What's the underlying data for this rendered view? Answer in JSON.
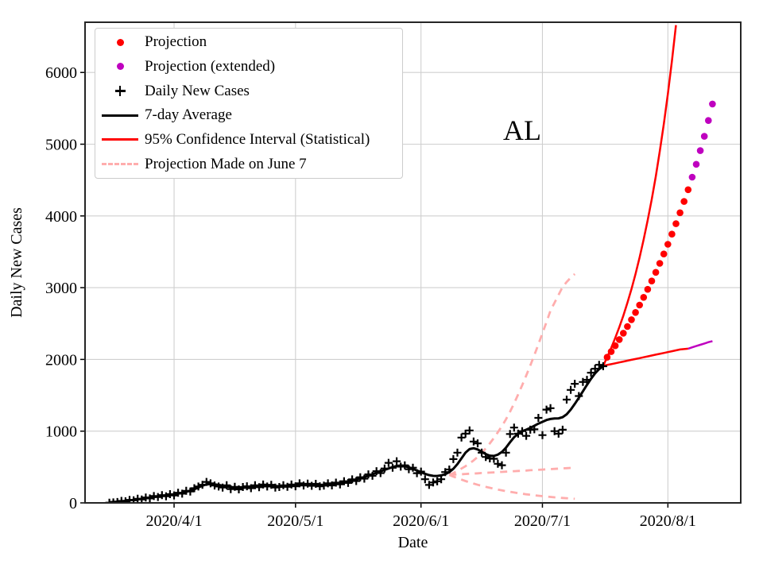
{
  "legend": {
    "items": [
      {
        "label": "Projection",
        "marker": "red-dot"
      },
      {
        "label": "Projection (extended)",
        "marker": "magenta-dot"
      },
      {
        "label": "Daily New Cases",
        "marker": "black-plus"
      },
      {
        "label": "7-day Average",
        "marker": "black-line"
      },
      {
        "label": "95% Confidence Interval (Statistical)",
        "marker": "red-line"
      },
      {
        "label": "Projection Made on June 7",
        "marker": "pink-dashed-line"
      }
    ]
  },
  "chart_data": {
    "type": "line",
    "title": "AL",
    "xlabel": "Date",
    "ylabel": "Daily New Cases",
    "xlim": [
      "2020-03-10",
      "2020-08-19"
    ],
    "ylim": [
      0,
      6700
    ],
    "grid": true,
    "legend_position": "upper left",
    "colors": {
      "red": "#ff0000",
      "magenta": "#bf00bf",
      "black": "#000000",
      "pink": "#ffadad",
      "grid": "#cfcfcf"
    },
    "annotation": {
      "text": "AL",
      "date": "2020-06-26",
      "value": 5150
    },
    "x_ticks": [
      {
        "label": "2020/4/1",
        "date": "2020-04-01"
      },
      {
        "label": "2020/5/1",
        "date": "2020-05-01"
      },
      {
        "label": "2020/6/1",
        "date": "2020-06-01"
      },
      {
        "label": "2020/7/1",
        "date": "2020-07-01"
      },
      {
        "label": "2020/8/1",
        "date": "2020-08-01"
      }
    ],
    "y_ticks": [
      {
        "label": "0",
        "value": 0
      },
      {
        "label": "1000",
        "value": 1000
      },
      {
        "label": "2000",
        "value": 2000
      },
      {
        "label": "3000",
        "value": 3000
      },
      {
        "label": "4000",
        "value": 4000
      },
      {
        "label": "5000",
        "value": 5000
      },
      {
        "label": "6000",
        "value": 6000
      }
    ],
    "series": [
      {
        "id": "june7-upper",
        "name": "Projection Made on June 7 (upper)",
        "style": "line",
        "color": "#ffadad",
        "width": 2.8,
        "dash": "9 7",
        "start": "2020-06-08",
        "values": [
          390,
          415,
          445,
          478,
          512,
          550,
          592,
          640,
          695,
          760,
          830,
          905,
          985,
          1070,
          1165,
          1270,
          1385,
          1510,
          1640,
          1775,
          1915,
          2060,
          2210,
          2365,
          2520,
          2680,
          2790,
          2900,
          3010,
          3080,
          3140,
          3190
        ]
      },
      {
        "id": "june7-mid",
        "name": "Projection Made on June 7 (central)",
        "style": "line",
        "color": "#ffadad",
        "width": 2.8,
        "dash": "9 7",
        "start": "2020-06-08",
        "values": [
          390,
          393,
          396,
          399,
          403,
          406,
          409,
          412,
          416,
          419,
          422,
          425,
          429,
          432,
          435,
          438,
          442,
          445,
          448,
          451,
          455,
          458,
          461,
          464,
          468,
          471,
          474,
          477,
          481,
          484,
          487,
          490
        ]
      },
      {
        "id": "june7-lower",
        "name": "Projection Made on June 7 (lower)",
        "style": "line",
        "color": "#ffadad",
        "width": 2.8,
        "dash": "9 7",
        "start": "2020-06-08",
        "values": [
          390,
          367,
          345,
          324,
          305,
          286,
          269,
          253,
          238,
          224,
          210,
          198,
          186,
          175,
          164,
          154,
          145,
          136,
          128,
          120,
          113,
          106,
          100,
          94,
          88,
          83,
          78,
          73,
          69,
          65,
          61,
          57
        ]
      },
      {
        "id": "ci-upper",
        "name": "95% Confidence Interval upper",
        "style": "line",
        "color": "#ff0000",
        "width": 2.5,
        "start": "2020-07-16",
        "values": [
          1910,
          2030,
          2160,
          2300,
          2450,
          2610,
          2790,
          2980,
          3190,
          3420,
          3670,
          3940,
          4230,
          4550,
          4900,
          5280,
          5700,
          6160,
          6660
        ]
      },
      {
        "id": "ci-lower",
        "name": "95% Confidence Interval lower",
        "style": "line",
        "color": "#ff0000",
        "width": 2.5,
        "start": "2020-07-16",
        "values": [
          1910,
          1922,
          1934,
          1946,
          1958,
          1970,
          1982,
          1994,
          2006,
          2018,
          2030,
          2042,
          2054,
          2066,
          2078,
          2090,
          2102,
          2114,
          2126,
          2138,
          2144,
          2150
        ]
      },
      {
        "id": "ci-lower-extended",
        "name": "95% Confidence Interval lower (extended)",
        "style": "line",
        "color": "#bf00bf",
        "width": 2.5,
        "start": "2020-08-06",
        "values": [
          2150,
          2168,
          2186,
          2204,
          2222,
          2240,
          2255
        ]
      },
      {
        "id": "projection",
        "name": "Projection",
        "style": "dot",
        "color": "#ff0000",
        "start": "2020-07-17",
        "values": [
          2030,
          2109,
          2191,
          2277,
          2366,
          2458,
          2554,
          2654,
          2757,
          2865,
          2977,
          3093,
          3214,
          3339,
          3470,
          3605,
          3746,
          3892,
          4044,
          4202,
          4366
        ]
      },
      {
        "id": "projection-extended",
        "name": "Projection (extended)",
        "style": "dot",
        "color": "#bf00bf",
        "start": "2020-08-07",
        "values": [
          4540,
          4720,
          4910,
          5110,
          5330,
          5560
        ]
      },
      {
        "id": "seven-day-average",
        "name": "7-day Average",
        "style": "line",
        "color": "#000000",
        "width": 3,
        "start": "2020-03-16",
        "values": [
          8,
          12,
          17,
          22,
          28,
          35,
          42,
          50,
          58,
          66,
          74,
          82,
          90,
          97,
          104,
          112,
          120,
          130,
          142,
          155,
          170,
          190,
          215,
          240,
          258,
          262,
          258,
          250,
          240,
          228,
          218,
          212,
          208,
          210,
          215,
          222,
          230,
          236,
          240,
          242,
          240,
          236,
          232,
          230,
          232,
          240,
          250,
          255,
          258,
          257,
          255,
          252,
          250,
          252,
          256,
          261,
          267,
          275,
          285,
          297,
          311,
          326,
          343,
          361,
          380,
          400,
          420,
          440,
          460,
          480,
          500,
          515,
          520,
          512,
          496,
          475,
          452,
          428,
          405,
          388,
          377,
          375,
          383,
          400,
          430,
          475,
          540,
          620,
          700,
          750,
          762,
          745,
          712,
          680,
          658,
          655,
          672,
          710,
          770,
          845,
          915,
          965,
          1000,
          1020,
          1045,
          1075,
          1105,
          1130,
          1155,
          1170,
          1176,
          1178,
          1195,
          1235,
          1300,
          1380,
          1465,
          1555,
          1645,
          1730,
          1805,
          1865,
          1905
        ]
      },
      {
        "id": "daily-new-cases",
        "name": "Daily New Cases",
        "style": "plus",
        "color": "#000000",
        "start": "2020-03-16",
        "values": [
          3,
          7,
          12,
          28,
          22,
          42,
          35,
          58,
          48,
          75,
          62,
          95,
          82,
          108,
          92,
          122,
          104,
          142,
          128,
          168,
          158,
          205,
          228,
          252,
          292,
          272,
          242,
          228,
          214,
          246,
          192,
          224,
          188,
          222,
          232,
          205,
          246,
          218,
          256,
          228,
          252,
          214,
          222,
          246,
          224,
          256,
          232,
          272,
          242,
          268,
          238,
          266,
          232,
          240,
          272,
          244,
          282,
          258,
          302,
          278,
          328,
          304,
          358,
          338,
          398,
          378,
          442,
          415,
          480,
          558,
          490,
          580,
          505,
          524,
          469,
          491,
          414,
          436,
          330,
          250,
          285,
          300,
          330,
          430,
          465,
          610,
          700,
          910,
          965,
          1010,
          855,
          830,
          700,
          640,
          620,
          615,
          545,
          525,
          700,
          960,
          1050,
          965,
          1000,
          935,
          1020,
          1025,
          1185,
          945,
          1300,
          1320,
          1000,
          965,
          1020,
          1440,
          1575,
          1660,
          1490,
          1685,
          1715,
          1815,
          1870,
          1925,
          1905
        ]
      }
    ]
  }
}
